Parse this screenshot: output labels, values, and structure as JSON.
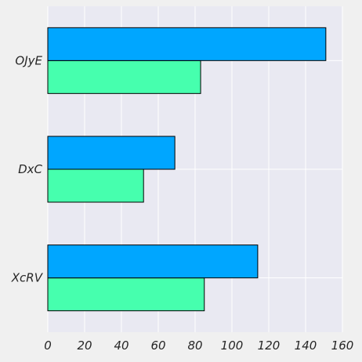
{
  "chart_data": {
    "type": "bar",
    "orientation": "horizontal",
    "categories": [
      "XcRV",
      "DxC",
      "OJyE"
    ],
    "series": [
      {
        "values": [
          85,
          52,
          83
        ],
        "color": "#46ffae"
      },
      {
        "values": [
          114,
          69,
          151
        ],
        "color": "#00a6ff"
      }
    ],
    "xticks": [
      "0",
      "20",
      "40",
      "60",
      "80",
      "100",
      "120",
      "140",
      "160"
    ],
    "xlim": [
      0,
      160
    ],
    "grid": true,
    "colors": {
      "plot_background": "#e9e9f2",
      "page_background": "#f0f0f0",
      "grid": "#ffffff",
      "bar_edge": "#000000"
    }
  }
}
